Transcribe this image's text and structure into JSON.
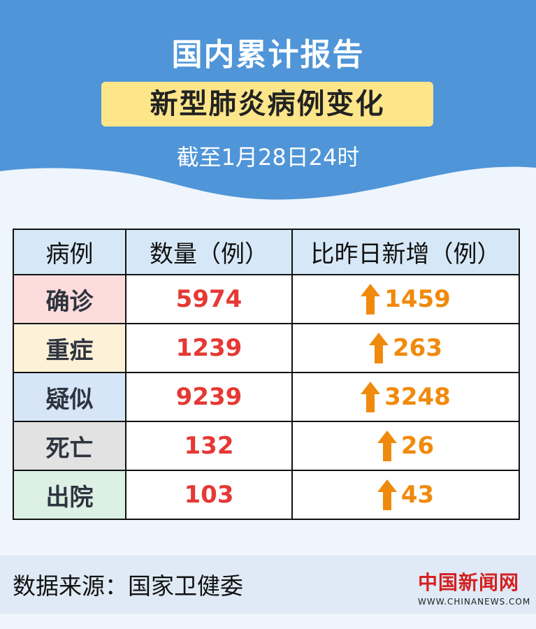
{
  "header": {
    "title": "国内累计报告",
    "badge": "新型肺炎病例变化",
    "subtitle": "截至1月28日24时"
  },
  "table": {
    "columns": [
      "病例",
      "数量（例）",
      "比昨日新增（例）"
    ],
    "rows": [
      {
        "label": "确诊",
        "count": "5974",
        "increase": "1459",
        "color": "#fddcdc"
      },
      {
        "label": "重症",
        "count": "1239",
        "increase": "263",
        "color": "#fdf2d8"
      },
      {
        "label": "疑似",
        "count": "9239",
        "increase": "3248",
        "color": "#d6e6f8"
      },
      {
        "label": "死亡",
        "count": "132",
        "increase": "26",
        "color": "#e2e2e2"
      },
      {
        "label": "出院",
        "count": "103",
        "increase": "43",
        "color": "#dcf0e4"
      }
    ],
    "increase_icon": "arrow-up-icon"
  },
  "footer": {
    "source": "数据来源：国家卫健委",
    "logo_text": "中国新闻网",
    "logo_url": "WWW.CHINANEWS.COM"
  },
  "colors": {
    "header_blue": "#4f95d8",
    "badge_yellow": "#fde68a",
    "count_red": "#e53935",
    "increase_orange": "#f08a0c"
  }
}
